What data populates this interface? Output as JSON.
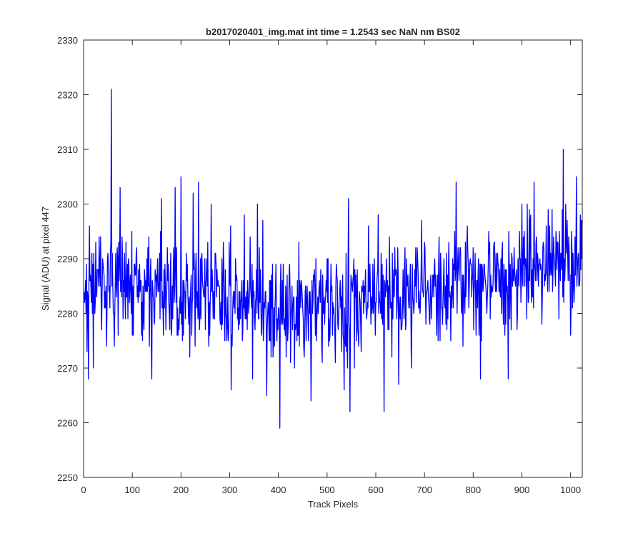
{
  "chart_data": {
    "type": "line",
    "title": "b2017020401_img.mat int time = 1.2543 sec  NaN nm BS02",
    "xlabel": "Track Pixels",
    "ylabel": "Signal (ADU) at pixel 447",
    "xlim": [
      0,
      1024
    ],
    "ylim": [
      2250,
      2330
    ],
    "xticks": [
      0,
      100,
      200,
      300,
      400,
      500,
      600,
      700,
      800,
      900,
      1000
    ],
    "yticks": [
      2250,
      2260,
      2270,
      2280,
      2290,
      2300,
      2310,
      2320,
      2330
    ],
    "grid": false,
    "legend": "none",
    "series": [
      {
        "color": "#0000ff",
        "x_start": 1,
        "x_step": 1,
        "count": 1024,
        "baseline_trend": [
          [
            0,
            2285
          ],
          [
            150,
            2286
          ],
          [
            300,
            2283
          ],
          [
            400,
            2281
          ],
          [
            500,
            2281
          ],
          [
            600,
            2283
          ],
          [
            700,
            2284
          ],
          [
            800,
            2285
          ],
          [
            900,
            2287
          ],
          [
            1024,
            2290
          ]
        ],
        "noise_std": 5,
        "sample_seed": 20170204,
        "anchor_points": [
          {
            "x": 10,
            "y": 2268
          },
          {
            "x": 12,
            "y": 2296
          },
          {
            "x": 20,
            "y": 2270
          },
          {
            "x": 35,
            "y": 2294
          },
          {
            "x": 57,
            "y": 2321
          },
          {
            "x": 63,
            "y": 2274
          },
          {
            "x": 75,
            "y": 2303
          },
          {
            "x": 100,
            "y": 2276
          },
          {
            "x": 135,
            "y": 2274
          },
          {
            "x": 140,
            "y": 2268
          },
          {
            "x": 160,
            "y": 2301
          },
          {
            "x": 180,
            "y": 2276
          },
          {
            "x": 188,
            "y": 2303
          },
          {
            "x": 200,
            "y": 2305
          },
          {
            "x": 218,
            "y": 2272
          },
          {
            "x": 225,
            "y": 2302
          },
          {
            "x": 236,
            "y": 2304
          },
          {
            "x": 262,
            "y": 2300
          },
          {
            "x": 303,
            "y": 2266
          },
          {
            "x": 330,
            "y": 2298
          },
          {
            "x": 357,
            "y": 2300
          },
          {
            "x": 376,
            "y": 2265
          },
          {
            "x": 403,
            "y": 2259
          },
          {
            "x": 405,
            "y": 2289
          },
          {
            "x": 425,
            "y": 2271
          },
          {
            "x": 467,
            "y": 2264
          },
          {
            "x": 474,
            "y": 2288
          },
          {
            "x": 500,
            "y": 2290
          },
          {
            "x": 535,
            "y": 2266
          },
          {
            "x": 547,
            "y": 2262
          },
          {
            "x": 555,
            "y": 2290
          },
          {
            "x": 597,
            "y": 2290
          },
          {
            "x": 605,
            "y": 2298
          },
          {
            "x": 617,
            "y": 2262
          },
          {
            "x": 680,
            "y": 2288
          },
          {
            "x": 700,
            "y": 2293
          },
          {
            "x": 765,
            "y": 2304
          },
          {
            "x": 800,
            "y": 2292
          },
          {
            "x": 815,
            "y": 2268
          },
          {
            "x": 842,
            "y": 2292
          },
          {
            "x": 872,
            "y": 2268
          },
          {
            "x": 900,
            "y": 2300
          },
          {
            "x": 925,
            "y": 2304
          },
          {
            "x": 950,
            "y": 2296
          },
          {
            "x": 985,
            "y": 2310
          },
          {
            "x": 1000,
            "y": 2276
          },
          {
            "x": 1012,
            "y": 2305
          }
        ]
      }
    ]
  }
}
